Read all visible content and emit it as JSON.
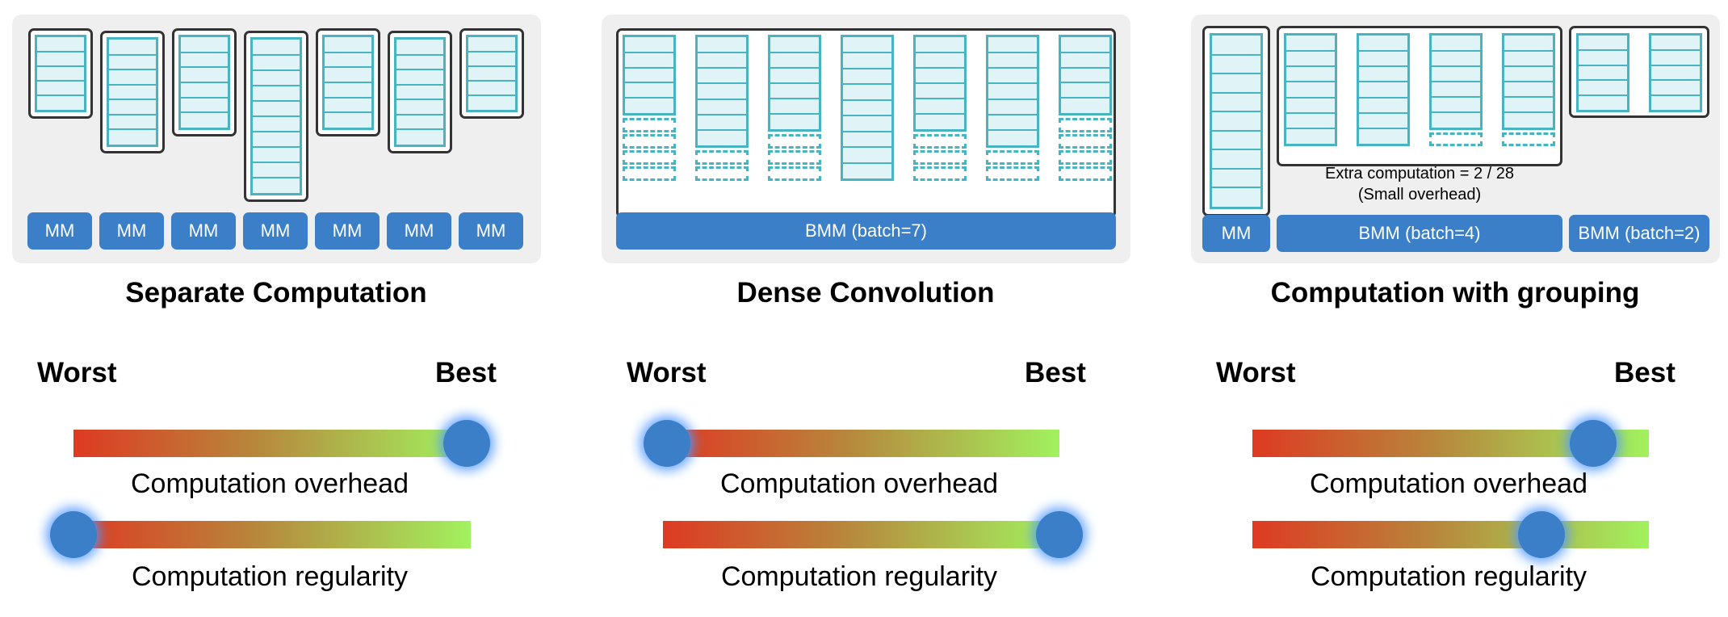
{
  "panels": [
    {
      "title": "Separate Computation",
      "ops": [
        "MM",
        "MM",
        "MM",
        "MM",
        "MM",
        "MM",
        "MM"
      ],
      "worst_label": "Worst",
      "best_label": "Best",
      "sliders": [
        {
          "label": "Computation overhead",
          "value": 1.0
        },
        {
          "label": "Computation regularity",
          "value": 0.0
        }
      ]
    },
    {
      "title": "Dense Convolution",
      "ops": [
        "BMM (batch=7)"
      ],
      "worst_label": "Worst",
      "best_label": "Best",
      "sliders": [
        {
          "label": "Computation overhead",
          "value": 0.0
        },
        {
          "label": "Computation regularity",
          "value": 1.0
        }
      ]
    },
    {
      "title": "Computation with grouping",
      "ops": [
        "MM",
        "BMM (batch=4)",
        "BMM (batch=2)"
      ],
      "note_line1": "Extra computation = 2 / 28",
      "note_line2": "(Small overhead)",
      "worst_label": "Worst",
      "best_label": "Best",
      "sliders": [
        {
          "label": "Computation overhead",
          "value": 0.86
        },
        {
          "label": "Computation regularity",
          "value": 0.73
        }
      ]
    }
  ],
  "colors": {
    "matrix_fill": "#e0f3f6",
    "matrix_border": "#48b4c2",
    "op_fill": "#3a7fc8",
    "gradient": [
      "#de3a22",
      "#b8853b",
      "#a1f25e"
    ]
  }
}
